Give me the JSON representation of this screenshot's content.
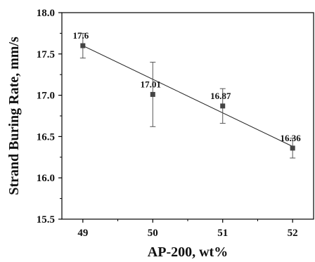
{
  "chart_data": {
    "type": "scatter",
    "title": "",
    "xlabel": "AP-200, wt%",
    "ylabel": "Strand Buring Rate, mm/s",
    "xlim": [
      48.7,
      52.3
    ],
    "ylim": [
      15.5,
      18.0
    ],
    "xticks": [
      49,
      50,
      51,
      52
    ],
    "yticks": [
      15.5,
      16.0,
      16.5,
      17.0,
      17.5,
      18.0
    ],
    "ytick_labels": [
      "15.5",
      "16.0",
      "16.5",
      "17.0",
      "17.5",
      "18.0"
    ],
    "xtick_labels": [
      "49",
      "50",
      "51",
      "52"
    ],
    "x": [
      49,
      50,
      51,
      52
    ],
    "y": [
      17.6,
      17.01,
      16.87,
      16.36
    ],
    "error": [
      0.15,
      0.39,
      0.21,
      0.12
    ],
    "data_labels": [
      "17.6",
      "17.01",
      "16.87",
      "16.36"
    ],
    "fit_line": {
      "x": [
        49,
        52
      ],
      "y": [
        17.6,
        16.38
      ]
    },
    "grid": false,
    "legend": "none",
    "colors": {
      "marker": "#444444",
      "line": "#222222",
      "axis": "#000000"
    }
  }
}
